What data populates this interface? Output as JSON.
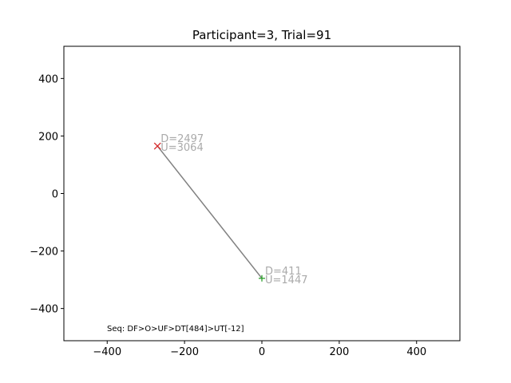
{
  "chart_data": {
    "type": "scatter",
    "title": "Participant=3, Trial=91",
    "xlabel": "",
    "ylabel": "",
    "xlim": [
      -512,
      512
    ],
    "ylim": [
      -512,
      512
    ],
    "xticks": [
      -400,
      -200,
      0,
      200,
      400
    ],
    "yticks": [
      -400,
      -200,
      0,
      200,
      400
    ],
    "xtick_labels": [
      "−400",
      "−200",
      "0",
      "200",
      "400"
    ],
    "ytick_labels": [
      "−400",
      "−200",
      "0",
      "200",
      "400"
    ],
    "grid": false,
    "line": {
      "color": "#808080",
      "points": [
        {
          "x": -270,
          "y": 165
        },
        {
          "x": 0,
          "y": -295
        }
      ]
    },
    "markers": [
      {
        "name": "start",
        "symbol": "x",
        "color": "#d62728",
        "x": -270,
        "y": 165,
        "labels": [
          "D=2497",
          "U=3064"
        ]
      },
      {
        "name": "end",
        "symbol": "+",
        "color": "#2ca02c",
        "x": 0,
        "y": -295,
        "labels": [
          "D=411",
          "U=1447"
        ]
      }
    ],
    "annotation": "Seq: DF>O>UF>DT[484]>UT[-12]"
  }
}
